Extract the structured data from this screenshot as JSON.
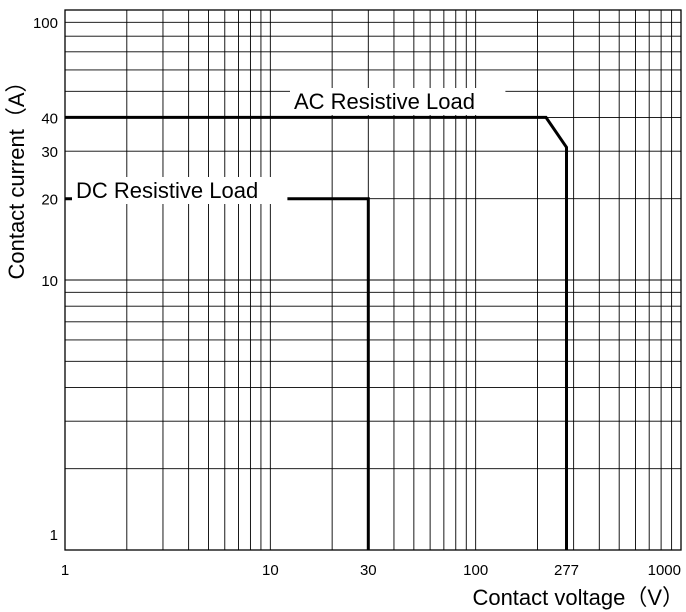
{
  "chart_data": {
    "type": "line",
    "title": "",
    "xlabel": "Contact voltage（V）",
    "ylabel": "Contact current（A）",
    "xscale": "log",
    "yscale": "log",
    "xlim": [
      1,
      1000
    ],
    "ylim": [
      1,
      100
    ],
    "grid": true,
    "x_ticks": [
      {
        "value": 1,
        "label": "1"
      },
      {
        "value": 10,
        "label": "10"
      },
      {
        "value": 30,
        "label": "30"
      },
      {
        "value": 100,
        "label": "100"
      },
      {
        "value": 277,
        "label": "277"
      },
      {
        "value": 1000,
        "label": "1000"
      }
    ],
    "y_ticks": [
      {
        "value": 1,
        "label": "1"
      },
      {
        "value": 10,
        "label": "10"
      },
      {
        "value": 20,
        "label": "20"
      },
      {
        "value": 30,
        "label": "30"
      },
      {
        "value": 40,
        "label": "40"
      },
      {
        "value": 100,
        "label": "100"
      }
    ],
    "series": [
      {
        "name": "AC Resistive Load",
        "points": [
          [
            1,
            40
          ],
          [
            220,
            40
          ],
          [
            277,
            31
          ],
          [
            277,
            1
          ]
        ]
      },
      {
        "name": "DC Resistive Load",
        "points": [
          [
            1,
            20
          ],
          [
            30,
            20
          ],
          [
            30,
            1
          ]
        ]
      }
    ]
  }
}
